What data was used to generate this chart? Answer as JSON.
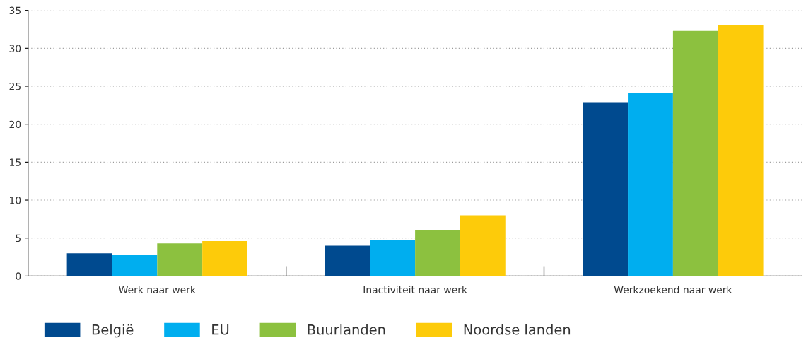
{
  "chart_data": {
    "type": "bar",
    "categories": [
      "Werk naar werk",
      "Inactiviteit naar werk",
      "Werkzoekend naar werk"
    ],
    "series": [
      {
        "name": "België",
        "color": "#004a8f",
        "values": [
          3.0,
          4.0,
          22.9
        ]
      },
      {
        "name": "EU",
        "color": "#00aeef",
        "values": [
          2.8,
          4.7,
          24.1
        ]
      },
      {
        "name": "Buurlanden",
        "color": "#8cc13f",
        "values": [
          4.3,
          6.0,
          32.3
        ]
      },
      {
        "name": "Noordse landen",
        "color": "#fdcb0a",
        "values": [
          4.6,
          8.0,
          33.0
        ]
      }
    ],
    "ylim": [
      0,
      35
    ],
    "yticks": [
      0,
      5,
      10,
      15,
      20,
      25,
      30,
      35
    ],
    "grid": "y",
    "legend": "bottom"
  }
}
